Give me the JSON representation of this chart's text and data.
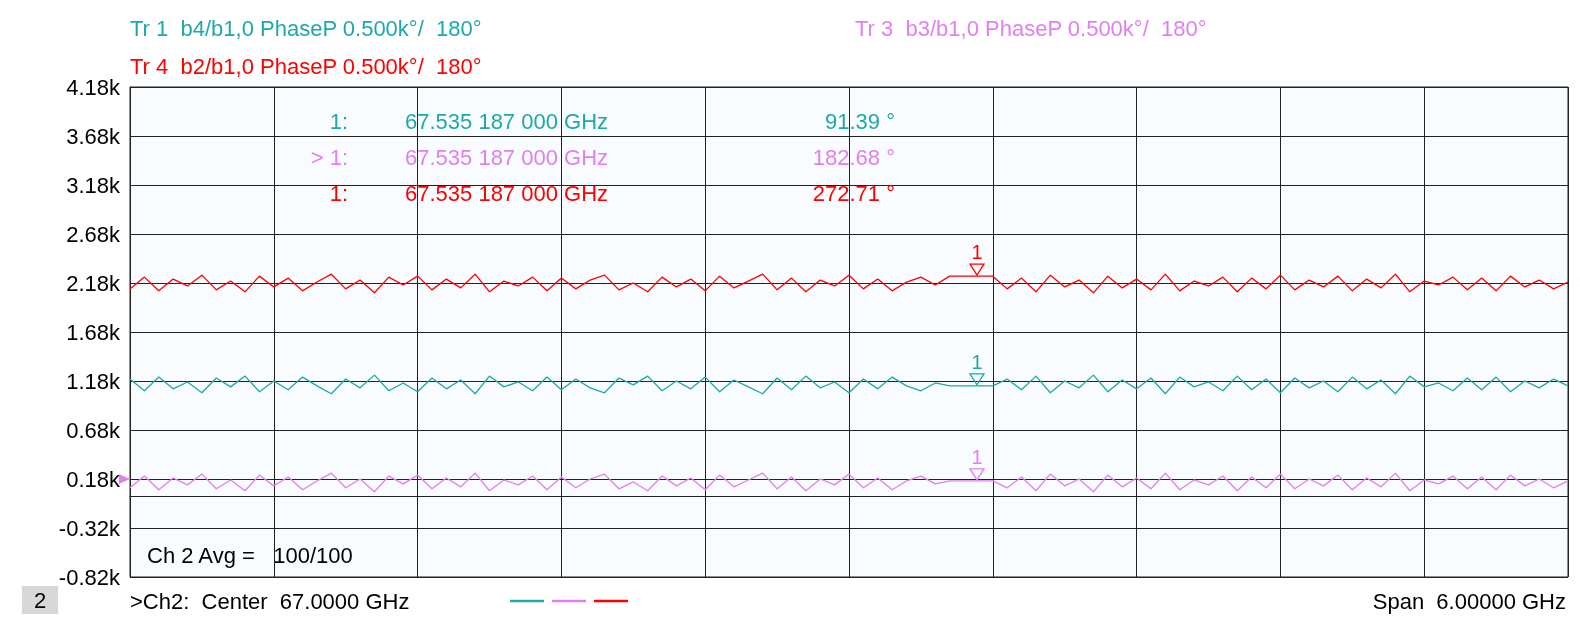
{
  "chart_data": {
    "type": "line",
    "grid": true,
    "line_style": "solid",
    "ylim": [
      -0.82,
      4.18
    ],
    "yticks": [
      {
        "value": -0.82,
        "label": "-0.82k"
      },
      {
        "value": -0.32,
        "label": "-0.32k"
      },
      {
        "value": 0.18,
        "label": "0.18k"
      },
      {
        "value": 0.68,
        "label": "0.68k"
      },
      {
        "value": 1.18,
        "label": "1.18k"
      },
      {
        "value": 1.68,
        "label": "1.68k"
      },
      {
        "value": 2.18,
        "label": "2.18k"
      },
      {
        "value": 2.68,
        "label": "2.68k"
      },
      {
        "value": 3.18,
        "label": "3.18k"
      },
      {
        "value": 3.68,
        "label": "3.68k"
      },
      {
        "value": 4.18,
        "label": "4.18k"
      }
    ],
    "categories": [
      null,
      null,
      null,
      null,
      null,
      null,
      null,
      null,
      null,
      null,
      null,
      null,
      null,
      null,
      null,
      null,
      null,
      null,
      null,
      null,
      null,
      null,
      null,
      null,
      null,
      null,
      null,
      null,
      null,
      null,
      null,
      null,
      null,
      null,
      null,
      null,
      null,
      null,
      null,
      null,
      null,
      null,
      null,
      null,
      null,
      null,
      null,
      null,
      null,
      null,
      null,
      null,
      null,
      null,
      null,
      null,
      null,
      null,
      null,
      null,
      null,
      null,
      null,
      null,
      null,
      null,
      null,
      null,
      null,
      null,
      null,
      null,
      null,
      null,
      null,
      null,
      null,
      null,
      null,
      null,
      null,
      null,
      null,
      null,
      null,
      null,
      null,
      null,
      null,
      null,
      null,
      null,
      null,
      null,
      null,
      null,
      null,
      null,
      null,
      null,
      null
    ],
    "series": [
      {
        "name": "Tr 1  b4/b1,0 PhaseP 0.500k°/  180°",
        "color": "#1fa8a8",
        "values": [
          1.2,
          1.08,
          1.22,
          1.1,
          1.17,
          1.06,
          1.21,
          1.12,
          1.23,
          1.07,
          1.18,
          1.09,
          1.22,
          1.13,
          1.05,
          1.2,
          1.11,
          1.24,
          1.08,
          1.16,
          1.07,
          1.21,
          1.1,
          1.19,
          1.05,
          1.23,
          1.12,
          1.17,
          1.08,
          1.22,
          1.09,
          1.2,
          1.11,
          1.06,
          1.21,
          1.14,
          1.23,
          1.08,
          1.18,
          1.1,
          1.22,
          1.07,
          1.19,
          1.12,
          1.05,
          1.21,
          1.09,
          1.23,
          1.11,
          1.17,
          1.06,
          1.2,
          1.1,
          1.22,
          1.13,
          1.08,
          1.16,
          1.13,
          1.13,
          1.13,
          1.13,
          1.2,
          1.09,
          1.23,
          1.06,
          1.18,
          1.11,
          1.24,
          1.07,
          1.19,
          1.1,
          1.21,
          1.05,
          1.22,
          1.12,
          1.17,
          1.08,
          1.23,
          1.09,
          1.2,
          1.06,
          1.21,
          1.11,
          1.18,
          1.07,
          1.22,
          1.1,
          1.19,
          1.05,
          1.23,
          1.12,
          1.16,
          1.08,
          1.21,
          1.09,
          1.22,
          1.07,
          1.18,
          1.11,
          1.2,
          1.13
        ]
      },
      {
        "name": "Tr 3  b3/b1,0 PhaseP 0.500k°/  180°",
        "color": "#e27ff0",
        "values": [
          0.09,
          0.21,
          0.07,
          0.19,
          0.12,
          0.23,
          0.08,
          0.17,
          0.06,
          0.22,
          0.11,
          0.2,
          0.07,
          0.16,
          0.24,
          0.09,
          0.18,
          0.05,
          0.21,
          0.13,
          0.22,
          0.08,
          0.19,
          0.1,
          0.24,
          0.06,
          0.17,
          0.12,
          0.21,
          0.07,
          0.2,
          0.09,
          0.18,
          0.23,
          0.08,
          0.15,
          0.06,
          0.21,
          0.11,
          0.19,
          0.07,
          0.22,
          0.1,
          0.17,
          0.24,
          0.08,
          0.2,
          0.06,
          0.18,
          0.12,
          0.23,
          0.09,
          0.19,
          0.07,
          0.16,
          0.21,
          0.13,
          0.16,
          0.16,
          0.16,
          0.16,
          0.09,
          0.2,
          0.06,
          0.23,
          0.11,
          0.18,
          0.05,
          0.22,
          0.1,
          0.19,
          0.08,
          0.24,
          0.07,
          0.17,
          0.12,
          0.21,
          0.06,
          0.2,
          0.09,
          0.23,
          0.08,
          0.18,
          0.11,
          0.22,
          0.07,
          0.19,
          0.1,
          0.24,
          0.06,
          0.17,
          0.13,
          0.21,
          0.08,
          0.2,
          0.07,
          0.22,
          0.11,
          0.18,
          0.09,
          0.16
        ]
      },
      {
        "name": "Tr 4  b2/b1,0 PhaseP 0.500k°/  180°",
        "color": "#ff0000",
        "values": [
          2.12,
          2.24,
          2.1,
          2.22,
          2.15,
          2.26,
          2.11,
          2.2,
          2.09,
          2.25,
          2.14,
          2.23,
          2.1,
          2.19,
          2.27,
          2.12,
          2.21,
          2.08,
          2.24,
          2.16,
          2.25,
          2.11,
          2.22,
          2.13,
          2.27,
          2.09,
          2.2,
          2.15,
          2.24,
          2.1,
          2.23,
          2.12,
          2.21,
          2.26,
          2.11,
          2.18,
          2.09,
          2.24,
          2.14,
          2.22,
          2.1,
          2.25,
          2.13,
          2.2,
          2.27,
          2.11,
          2.23,
          2.09,
          2.21,
          2.15,
          2.26,
          2.12,
          2.22,
          2.1,
          2.19,
          2.24,
          2.16,
          2.25,
          2.25,
          2.25,
          2.25,
          2.12,
          2.23,
          2.09,
          2.26,
          2.14,
          2.21,
          2.08,
          2.25,
          2.13,
          2.22,
          2.11,
          2.27,
          2.1,
          2.2,
          2.15,
          2.24,
          2.09,
          2.23,
          2.12,
          2.26,
          2.11,
          2.21,
          2.14,
          2.25,
          2.1,
          2.22,
          2.13,
          2.27,
          2.09,
          2.2,
          2.16,
          2.24,
          2.11,
          2.23,
          2.1,
          2.25,
          2.14,
          2.21,
          2.12,
          2.19
        ]
      }
    ],
    "annotations": [
      "1:  67.535 187 000 GHz  91.39 °",
      "> 1:  67.535 187 000 GHz  182.68 °",
      "1:  67.535 187 000 GHz  272.71 °",
      {
        "text": "1",
        "y": 1.13
      },
      {
        "text": "1",
        "y": 0.16
      },
      {
        "text": "1",
        "y": 2.25
      },
      "Ch 2 Avg =   100/100",
      "2",
      ">Ch2:  Center  67.0000 GHz",
      "Span  6.00000 GHz"
    ]
  }
}
